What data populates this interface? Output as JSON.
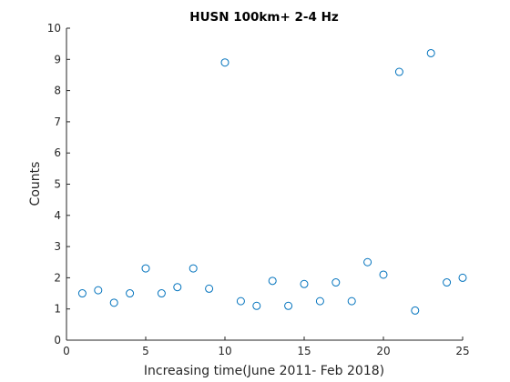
{
  "chart_data": {
    "type": "scatter",
    "title": "HUSN 100km+   2-4 Hz",
    "xlabel": "Increasing time(June 2011- Feb 2018)",
    "ylabel": "Counts",
    "xlim": [
      0,
      25
    ],
    "ylim": [
      0,
      10
    ],
    "xticks": [
      0,
      5,
      10,
      15,
      20,
      25
    ],
    "yticks": [
      0,
      1,
      2,
      3,
      4,
      5,
      6,
      7,
      8,
      9,
      10
    ],
    "grid": false,
    "marker": "open-circle",
    "color": "#0072bd",
    "x": [
      1,
      2,
      3,
      4,
      5,
      6,
      7,
      8,
      9,
      10,
      11,
      12,
      13,
      14,
      15,
      16,
      17,
      18,
      19,
      20,
      21,
      22,
      23,
      24,
      25
    ],
    "y": [
      1.5,
      1.6,
      1.2,
      1.5,
      2.3,
      1.5,
      1.7,
      2.3,
      1.65,
      8.9,
      1.25,
      1.1,
      1.9,
      1.1,
      1.8,
      1.25,
      1.85,
      1.25,
      2.5,
      2.1,
      8.6,
      0.95,
      9.2,
      1.85,
      2.0
    ]
  }
}
